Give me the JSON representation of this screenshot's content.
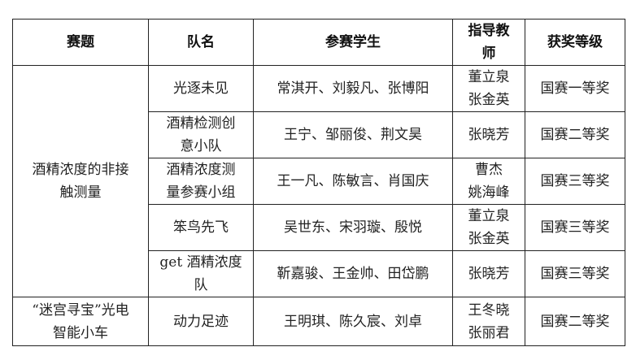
{
  "headers": [
    "赛题",
    "队名",
    "参赛学生",
    "指导教\n师",
    "获奖等级"
  ],
  "groups": [
    {
      "topic": "酒精浓度的非接\n触测量"
    },
    {
      "topic": "“迷宫寻宝”光电\n智能小车"
    }
  ],
  "rows": [
    {
      "team": "光逐未见",
      "students": "常淇开、刘毅凡、张博阳",
      "advisor": "董立泉\n张金英",
      "award": "国赛一等奖"
    },
    {
      "team": "酒精检测创\n意小队",
      "students": "王宁、邹丽俊、荆文昊",
      "advisor": "张晓芳",
      "award": "国赛二等奖"
    },
    {
      "team": "酒精浓度测\n量参赛小组",
      "students": "王一凡、陈敏言、肖国庆",
      "advisor": "曹杰\n姚海峰",
      "award": "国赛三等奖"
    },
    {
      "team": "笨鸟先飞",
      "students": "吴世东、宋羽璇、殷悦",
      "advisor": "董立泉\n张金英",
      "award": "国赛三等奖"
    },
    {
      "team": "get 酒精浓度\n队",
      "students": "靳嘉骏、王金帅、田岱鹏",
      "advisor": "张晓芳",
      "award": "国赛三等奖"
    },
    {
      "team": "动力足迹",
      "students": "王明琪、陈久宸、刘卓",
      "advisor": "王冬晓\n张丽君",
      "award": "国赛二等奖"
    }
  ]
}
